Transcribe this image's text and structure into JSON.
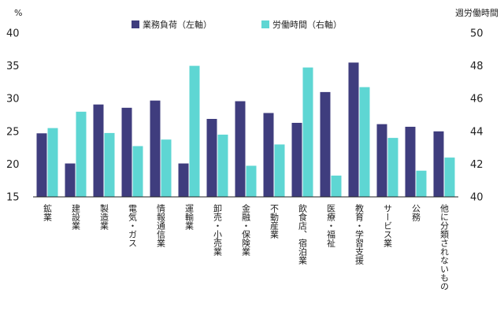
{
  "chart_data": {
    "type": "bar",
    "left_unit": "%",
    "right_unit": "週労働時間",
    "y_left": {
      "min": 15,
      "max": 40,
      "ticks": [
        15,
        20,
        25,
        30,
        35,
        40
      ]
    },
    "y_right": {
      "min": 40,
      "max": 50,
      "ticks": [
        40,
        42,
        44,
        46,
        48,
        50
      ]
    },
    "categories": [
      "鉱業",
      "建設業",
      "製造業",
      "電気・ガス",
      "情報通信業",
      "運輸業",
      "卸売・小売業",
      "金融・保険業",
      "不動産業",
      "飲食店、宿泊業",
      "医療・福祉",
      "教育・学習支援",
      "サービス業",
      "公務",
      "他に分類されないもの"
    ],
    "series": [
      {
        "name": "業務負荷（左軸）",
        "axis": "left",
        "color": "#3f3d7e",
        "values": [
          24.7,
          20.1,
          29.1,
          28.6,
          29.7,
          20.1,
          26.9,
          29.6,
          27.8,
          26.3,
          31.0,
          35.5,
          26.1,
          25.7,
          25.0
        ]
      },
      {
        "name": "労働時間（右軸）",
        "axis": "right",
        "color": "#5ed6d3",
        "values": [
          44.2,
          45.2,
          43.9,
          43.1,
          43.5,
          48.0,
          43.8,
          41.9,
          43.2,
          47.9,
          41.3,
          46.7,
          43.6,
          41.6,
          42.4
        ]
      }
    ],
    "grid": false,
    "legend": "top-center"
  }
}
